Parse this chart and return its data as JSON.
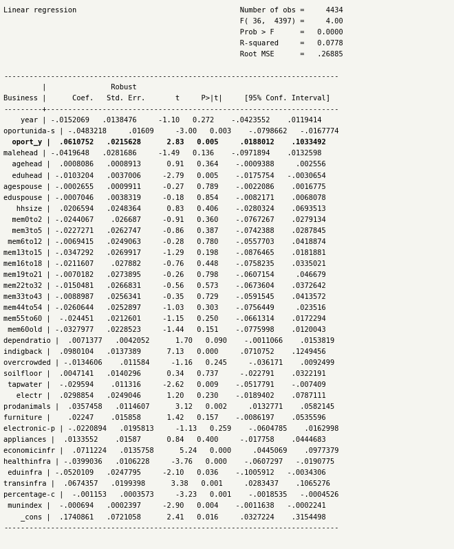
{
  "bg_color": "#f5f5f0",
  "text_color": "#000000",
  "font_family": "DejaVu Sans Mono",
  "font_size": 7.5,
  "lines": [
    "Linear regression                                      Number of obs =     4434",
    "                                                       F( 36,  4397) =     4.00",
    "                                                       Prob > F      =   0.0000",
    "                                                       R-squared     =   0.0778",
    "                                                       Root MSE      =   .26885",
    "",
    "------------------------------------------------------------------------------",
    "         |               Robust",
    "Business |      Coef.   Std. Err.       t     P>|t|     [95% Conf. Interval]",
    "---------+--------------------------------------------------------------------",
    "    year | -.0152069   .0138476     -1.10   0.272    -.0423552    .0119414",
    "oportunida-s | -.0483218     .01609     -3.00   0.003    -.0798662   -.0167774",
    "  oport_y |  .0610752   .0215628      2.83   0.005     .0188012    .1033492",
    "malehead | -.0419648   .0281686     -1.49   0.136    -.0971894    .0132598",
    "  agehead |  .0008086   .0008913      0.91   0.364    -.0009388     .002556",
    "  eduhead | -.0103204   .0037006     -2.79   0.005    -.0175754   -.0030654",
    "agespouse | -.0002655   .0009911     -0.27   0.789    -.0022086    .0016775",
    "eduspouse | -.0007046   .0038319     -0.18   0.854    -.0082171    .0068078",
    "   hhsize |  .0206594   .0248364      0.83   0.406    -.0280324    .0693513",
    "  mem0to2 | -.0244067    .026687     -0.91   0.360    -.0767267    .0279134",
    "  mem3to5 | -.0227271   .0262747     -0.86   0.387    -.0742388    .0287845",
    " mem6to12 | -.0069415   .0249063     -0.28   0.780    -.0557703    .0418874",
    "mem13to15 | -.0347292   .0269917     -1.29   0.198    -.0876465    .0181881",
    "mem16to18 | -.0211607    .027882     -0.76   0.448    -.0758235    .0335021",
    "mem19to21 | -.0070182   .0273895     -0.26   0.798    -.0607154     .046679",
    "mem22to32 | -.0150481   .0266831     -0.56   0.573    -.0673604    .0372642",
    "mem33to43 | -.0088987   .0256341     -0.35   0.729    -.0591545    .0413572",
    "mem44to54 | -.0260644   .0252897     -1.03   0.303    -.0756449     .023516",
    "mem55to60 |  -.024451   .0212601     -1.15   0.250    -.0661314    .0172294",
    " mem60old | -.0327977   .0228523     -1.44   0.151    -.0775998    .0120043",
    "dependratio |  .0071377   .0042052      1.70   0.090    -.0011066    .0153819",
    "indigback |  .0980104   .0137389      7.13   0.000     .0710752    .1249456",
    "overcrowded | -.0134606    .011584     -1.16   0.245     -.036171    .0092499",
    "soilfloor |  .0047141   .0140296      0.34   0.737     -.022791    .0322191",
    " tapwater |  -.029594    .011316     -2.62   0.009    -.0517791    -.007409",
    "   electr |  .0298854   .0249046      1.20   0.230    -.0189402    .0787111",
    "prodanimals |  .0357458   .0114607      3.12   0.002     .0132771    .0582145",
    "furniture |    .02247    .015858      1.42   0.157    -.0086197    .0535596",
    "electronic-p | -.0220894   .0195813     -1.13   0.259    -.0604785    .0162998",
    "appliances |  .0133552    .01587      0.84   0.400     -.017758    .0444683",
    "economicinfr |  .0711224   .0135758      5.24   0.000     .0445069    .0977379",
    "healthinfra | -.0399036   .0106228     -3.76   0.000    -.0607297   -.0190775",
    " eduinfra | -.0520109   .0247795     -2.10   0.036    -.1005912   -.0034306",
    "transinfra |  .0674357   .0199398      3.38   0.001     .0283437    .1065276",
    "percentage-c |  -.001153   .0003573     -3.23   0.001    -.0018535   -.0004526",
    " munindex |  -.000694   .0002397     -2.90   0.004    -.0011638   -.0002241",
    "    _cons |  .1740861   .0721058      2.41   0.016     .0327224    .3154498",
    "------------------------------------------------------------------------------"
  ],
  "bold_line_idx": 12,
  "bold_line_text": "  oport_y |  .0610752   .0215628      2.83   0.005     .0188012    .1033492"
}
